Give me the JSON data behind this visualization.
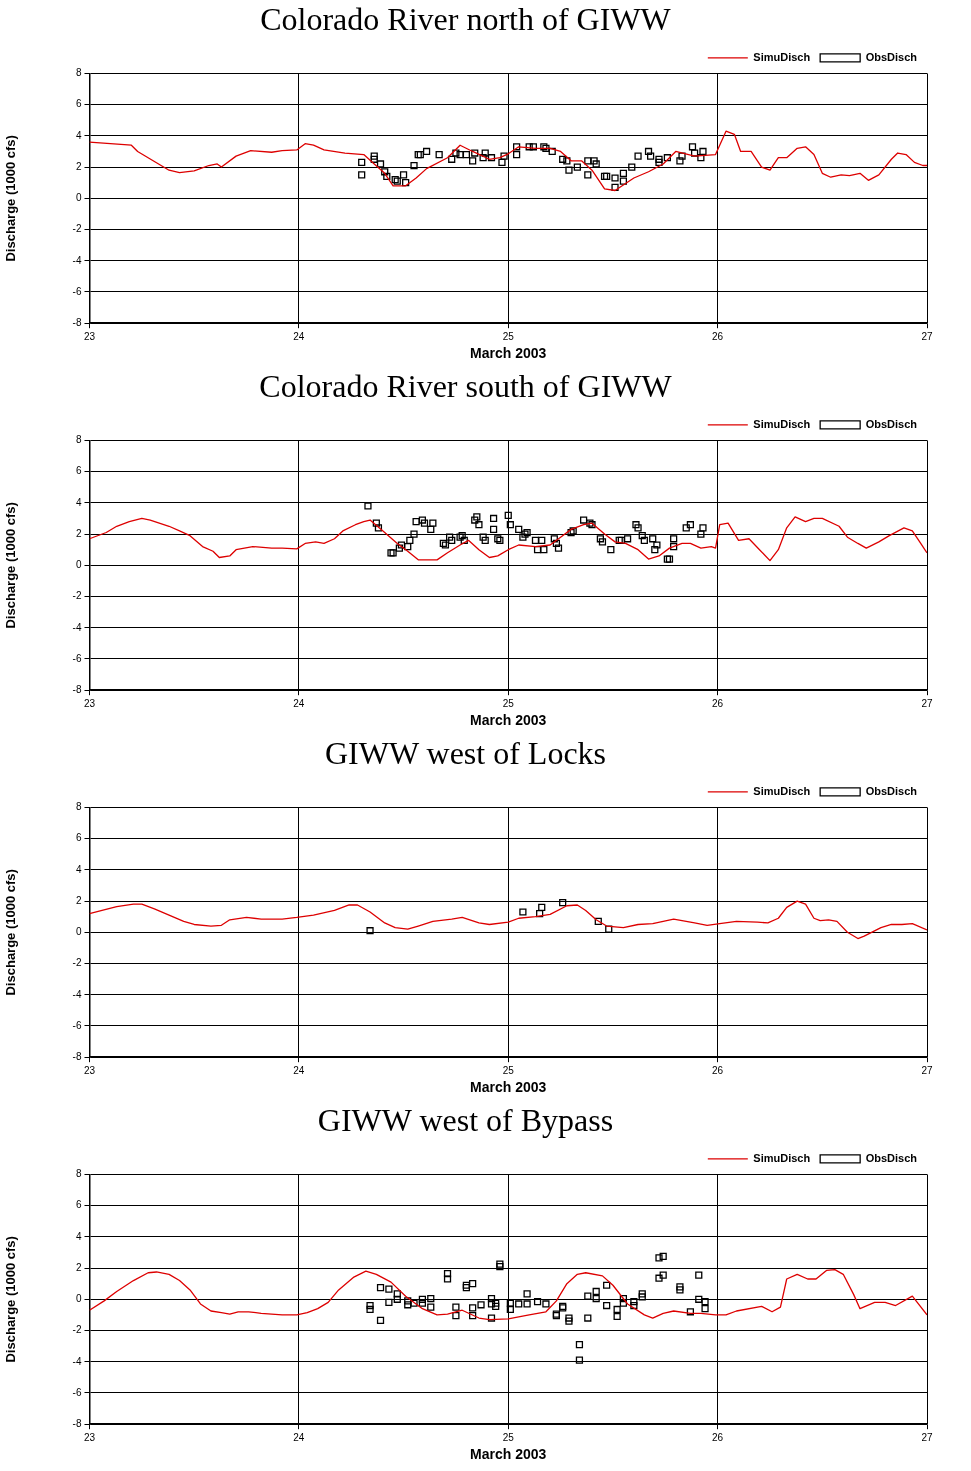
{
  "chart_data": [
    {
      "type": "line",
      "title": "Colorado River north of GIWW",
      "xlabel": "March 2003",
      "ylabel": "Discharge (1000 cfs)",
      "xlim": [
        23,
        27
      ],
      "xticks": [
        23,
        24,
        25,
        26,
        27
      ],
      "ylim": [
        -8,
        8
      ],
      "yticks": [
        -8,
        -6,
        -4,
        -2,
        0,
        2,
        4,
        6,
        8
      ],
      "grid": true,
      "legend": "top right",
      "series": [
        {
          "name": "SimuDisch",
          "type": "line",
          "color": "#dd0000",
          "marker": "none",
          "x": [
            23.0,
            23.2,
            23.23,
            23.33,
            23.38,
            23.43,
            23.5,
            23.57,
            23.61,
            23.63,
            23.7,
            23.77,
            23.87,
            23.92,
            23.99,
            24.03,
            24.07,
            24.12,
            24.22,
            24.31,
            24.36,
            24.41,
            24.45,
            24.51,
            24.56,
            24.61,
            24.71,
            24.77,
            24.83,
            24.91,
            24.96,
            25.0,
            25.05,
            25.13,
            25.2,
            25.25,
            25.3,
            25.35,
            25.4,
            25.46,
            25.51,
            25.6,
            25.67,
            25.74,
            25.8,
            25.89,
            25.99,
            26.04,
            26.08,
            26.11,
            26.16,
            26.21,
            26.25,
            26.29,
            26.33,
            26.38,
            26.42,
            26.46,
            26.5,
            26.54,
            26.59,
            26.63,
            26.68,
            26.72,
            26.77,
            26.83,
            26.86,
            26.9,
            26.94,
            26.98,
            27.0
          ],
          "values": [
            3.6,
            3.4,
            3.0,
            2.2,
            1.8,
            1.65,
            1.75,
            2.1,
            2.2,
            2.0,
            2.7,
            3.05,
            2.95,
            3.05,
            3.1,
            3.5,
            3.4,
            3.1,
            2.9,
            2.8,
            2.2,
            1.6,
            0.8,
            0.8,
            1.3,
            1.9,
            2.6,
            3.4,
            3.0,
            2.5,
            2.6,
            2.85,
            3.3,
            3.2,
            3.2,
            3.0,
            2.4,
            2.4,
            1.8,
            0.6,
            0.5,
            1.3,
            1.7,
            2.2,
            3.0,
            2.7,
            2.8,
            4.3,
            4.1,
            3.0,
            3.0,
            2.0,
            1.8,
            2.6,
            2.6,
            3.2,
            3.3,
            2.8,
            1.6,
            1.35,
            1.5,
            1.45,
            1.6,
            1.15,
            1.5,
            2.5,
            2.9,
            2.8,
            2.3,
            2.1,
            2.1
          ]
        },
        {
          "name": "ObsDisch",
          "type": "scatter",
          "color": "#000000",
          "marker": "square",
          "x": [
            24.3,
            24.3,
            24.36,
            24.36,
            24.39,
            24.41,
            24.42,
            24.46,
            24.47,
            24.5,
            24.51,
            24.55,
            24.57,
            24.58,
            24.61,
            24.67,
            24.73,
            24.75,
            24.77,
            24.8,
            24.83,
            24.84,
            24.88,
            24.89,
            24.92,
            24.97,
            24.98,
            25.04,
            25.04,
            25.1,
            25.12,
            25.17,
            25.18,
            25.21,
            25.26,
            25.28,
            25.29,
            25.33,
            25.38,
            25.38,
            25.41,
            25.42,
            25.46,
            25.47,
            25.51,
            25.51,
            25.55,
            25.55,
            25.59,
            25.62,
            25.67,
            25.68,
            25.72,
            25.72,
            25.76,
            25.82,
            25.83,
            25.88,
            25.89,
            25.92,
            25.93
          ],
          "values": [
            2.3,
            1.5,
            2.5,
            2.7,
            2.2,
            1.7,
            1.4,
            1.2,
            1.1,
            1.5,
            1.0,
            2.1,
            2.8,
            2.8,
            3.0,
            2.8,
            2.5,
            2.9,
            2.8,
            2.8,
            2.4,
            2.9,
            2.6,
            2.9,
            2.6,
            2.3,
            2.7,
            3.3,
            2.8,
            3.3,
            3.3,
            3.3,
            3.2,
            3.0,
            2.5,
            2.4,
            1.8,
            2.0,
            2.4,
            1.5,
            2.4,
            2.2,
            1.4,
            1.4,
            0.7,
            1.3,
            1.6,
            1.1,
            2.0,
            2.7,
            3.0,
            2.7,
            2.5,
            2.3,
            2.6,
            2.4,
            2.7,
            3.3,
            2.9,
            2.6,
            3.0
          ]
        }
      ]
    },
    {
      "type": "line",
      "title": "Colorado River south of GIWW",
      "xlabel": "March 2003",
      "ylabel": "Discharge (1000 cfs)",
      "xlim": [
        23,
        27
      ],
      "xticks": [
        23,
        24,
        25,
        26,
        27
      ],
      "ylim": [
        -8,
        8
      ],
      "yticks": [
        -8,
        -6,
        -4,
        -2,
        0,
        2,
        4,
        6,
        8
      ],
      "grid": true,
      "legend": "top right",
      "series": [
        {
          "name": "SimuDisch",
          "type": "line",
          "color": "#dd0000",
          "marker": "none",
          "x": [
            23.0,
            23.08,
            23.13,
            23.19,
            23.25,
            23.29,
            23.38,
            23.43,
            23.48,
            23.54,
            23.59,
            23.62,
            23.67,
            23.7,
            23.78,
            23.87,
            23.92,
            23.99,
            24.03,
            24.08,
            24.12,
            24.17,
            24.21,
            24.27,
            24.31,
            24.34,
            24.41,
            24.47,
            24.52,
            24.57,
            24.66,
            24.71,
            24.77,
            24.81,
            24.86,
            24.91,
            24.95,
            25.0,
            25.05,
            25.13,
            25.2,
            25.25,
            25.3,
            25.36,
            25.4,
            25.46,
            25.51,
            25.56,
            25.62,
            25.67,
            25.72,
            25.77,
            25.83,
            25.87,
            25.92,
            25.97,
            25.99,
            26.01,
            26.05,
            26.1,
            26.15,
            26.2,
            26.25,
            26.29,
            26.33,
            26.37,
            26.42,
            26.46,
            26.5,
            26.58,
            26.62,
            26.67,
            26.71,
            26.77,
            26.82,
            26.89,
            26.93,
            26.97,
            27.0
          ],
          "values": [
            1.7,
            2.1,
            2.5,
            2.8,
            3.0,
            2.9,
            2.5,
            2.2,
            1.9,
            1.2,
            0.9,
            0.5,
            0.6,
            1.0,
            1.2,
            1.1,
            1.1,
            1.05,
            1.4,
            1.5,
            1.4,
            1.7,
            2.2,
            2.6,
            2.8,
            2.9,
            2.1,
            1.4,
            0.9,
            0.35,
            0.35,
            0.8,
            1.3,
            1.6,
            1.0,
            0.5,
            0.6,
            1.0,
            1.3,
            1.2,
            1.3,
            1.8,
            2.3,
            2.6,
            2.7,
            2.0,
            1.5,
            1.4,
            1.0,
            0.4,
            0.6,
            1.1,
            1.4,
            1.4,
            1.1,
            1.2,
            1.1,
            2.6,
            2.7,
            1.6,
            1.7,
            1.0,
            0.3,
            1.0,
            2.4,
            3.1,
            2.8,
            3.0,
            3.0,
            2.5,
            1.8,
            1.4,
            1.1,
            1.5,
            1.9,
            2.4,
            2.2,
            1.4,
            0.8
          ]
        },
        {
          "name": "ObsDisch",
          "type": "scatter",
          "color": "#000000",
          "marker": "square",
          "x": [
            24.33,
            24.37,
            24.38,
            24.44,
            24.45,
            24.48,
            24.49,
            24.52,
            24.53,
            24.55,
            24.56,
            24.59,
            24.6,
            24.63,
            24.64,
            24.69,
            24.7,
            24.72,
            24.73,
            24.77,
            24.78,
            24.79,
            24.84,
            24.85,
            24.86,
            24.88,
            24.89,
            24.93,
            24.93,
            24.95,
            24.96,
            25.0,
            25.01,
            25.05,
            25.07,
            25.08,
            25.09,
            25.13,
            25.14,
            25.16,
            25.17,
            25.22,
            25.23,
            25.24,
            25.3,
            25.31,
            25.36,
            25.39,
            25.4,
            25.44,
            25.45,
            25.49,
            25.53,
            25.54,
            25.57,
            25.61,
            25.62,
            25.64,
            25.65,
            25.69,
            25.7,
            25.71,
            25.76,
            25.77,
            25.79,
            25.79,
            25.85,
            25.87,
            25.92,
            25.93
          ],
          "values": [
            3.8,
            2.7,
            2.4,
            0.8,
            0.8,
            1.1,
            1.3,
            1.2,
            1.6,
            2.0,
            2.8,
            2.9,
            2.7,
            2.3,
            2.7,
            1.4,
            1.3,
            1.8,
            1.6,
            1.8,
            1.9,
            1.6,
            2.9,
            3.1,
            2.6,
            1.8,
            1.6,
            2.3,
            3.0,
            1.7,
            1.6,
            3.2,
            2.6,
            2.3,
            1.8,
            2.0,
            2.1,
            1.6,
            1.0,
            1.6,
            1.0,
            1.7,
            1.4,
            1.1,
            2.1,
            2.2,
            2.9,
            2.7,
            2.6,
            1.7,
            1.5,
            1.0,
            1.6,
            1.6,
            1.7,
            2.6,
            2.4,
            1.9,
            1.6,
            1.7,
            1.0,
            1.3,
            0.4,
            0.4,
            1.7,
            1.2,
            2.4,
            2.6,
            2.0,
            2.4
          ]
        }
      ]
    },
    {
      "type": "line",
      "title": "GIWW west of Locks",
      "xlabel": "March 2003",
      "ylabel": "Discharge (1000 cfs)",
      "xlim": [
        23,
        27
      ],
      "xticks": [
        23,
        24,
        25,
        26,
        27
      ],
      "ylim": [
        -8,
        8
      ],
      "yticks": [
        -8,
        -6,
        -4,
        -2,
        0,
        2,
        4,
        6,
        8
      ],
      "grid": true,
      "legend": "top right",
      "series": [
        {
          "name": "SimuDisch",
          "type": "line",
          "color": "#dd0000",
          "marker": "none",
          "x": [
            23.0,
            23.06,
            23.13,
            23.21,
            23.25,
            23.31,
            23.38,
            23.45,
            23.5,
            23.58,
            23.63,
            23.67,
            23.75,
            23.82,
            23.92,
            23.99,
            24.07,
            24.17,
            24.24,
            24.28,
            24.34,
            24.41,
            24.46,
            24.52,
            24.57,
            24.64,
            24.73,
            24.78,
            24.86,
            24.91,
            25.0,
            25.05,
            25.13,
            25.2,
            25.28,
            25.33,
            25.37,
            25.42,
            25.47,
            25.55,
            25.62,
            25.69,
            25.79,
            25.89,
            25.95,
            26.01,
            26.09,
            26.19,
            26.24,
            26.29,
            26.33,
            26.38,
            26.42,
            26.46,
            26.49,
            26.53,
            26.57,
            26.62,
            26.67,
            26.7,
            26.78,
            26.83,
            26.88,
            26.93,
            27.0
          ],
          "values": [
            1.2,
            1.4,
            1.65,
            1.8,
            1.8,
            1.5,
            1.1,
            0.7,
            0.5,
            0.4,
            0.45,
            0.8,
            0.95,
            0.85,
            0.85,
            0.95,
            1.1,
            1.4,
            1.75,
            1.75,
            1.3,
            0.6,
            0.3,
            0.2,
            0.4,
            0.7,
            0.85,
            0.95,
            0.6,
            0.5,
            0.65,
            0.9,
            1.0,
            1.15,
            1.7,
            1.75,
            1.4,
            0.8,
            0.4,
            0.3,
            0.5,
            0.55,
            0.85,
            0.6,
            0.45,
            0.55,
            0.7,
            0.65,
            0.6,
            0.9,
            1.6,
            2.0,
            1.8,
            0.9,
            0.75,
            0.8,
            0.7,
            0,
            -0.4,
            -0.25,
            0.3,
            0.5,
            0.5,
            0.55,
            0.15
          ]
        },
        {
          "name": "ObsDisch",
          "type": "scatter",
          "color": "#000000",
          "marker": "square",
          "x": [
            24.34,
            25.07,
            25.15,
            25.16,
            25.26,
            25.43,
            25.48
          ],
          "values": [
            0.1,
            1.3,
            1.2,
            1.6,
            1.9,
            0.7,
            0.2
          ]
        }
      ]
    },
    {
      "type": "line",
      "title": "GIWW west of Bypass",
      "xlabel": "March 2003",
      "ylabel": "Discharge (1000 cfs)",
      "xlim": [
        23,
        27
      ],
      "xticks": [
        23,
        24,
        25,
        26,
        27
      ],
      "ylim": [
        -8,
        8
      ],
      "yticks": [
        -8,
        -6,
        -4,
        -2,
        0,
        2,
        4,
        6,
        8
      ],
      "grid": true,
      "legend": "top right",
      "series": [
        {
          "name": "SimuDisch",
          "type": "line",
          "color": "#dd0000",
          "marker": "none",
          "x": [
            23.0,
            23.07,
            23.13,
            23.21,
            23.28,
            23.32,
            23.38,
            23.43,
            23.48,
            23.53,
            23.58,
            23.63,
            23.67,
            23.71,
            23.76,
            23.82,
            23.92,
            23.99,
            24.04,
            24.09,
            24.14,
            24.19,
            24.26,
            24.32,
            24.37,
            24.44,
            24.51,
            24.59,
            24.66,
            24.71,
            24.78,
            24.86,
            24.91,
            25.0,
            25.1,
            25.18,
            25.23,
            25.28,
            25.33,
            25.37,
            25.45,
            25.5,
            25.57,
            25.65,
            25.69,
            25.74,
            25.79,
            25.87,
            25.92,
            25.99,
            26.04,
            26.09,
            26.21,
            26.26,
            26.3,
            26.33,
            26.38,
            26.43,
            26.47,
            26.52,
            26.56,
            26.6,
            26.65,
            26.68,
            26.75,
            26.8,
            26.85,
            26.93,
            27.0
          ],
          "values": [
            -0.7,
            -0.1,
            0.5,
            1.2,
            1.7,
            1.75,
            1.6,
            1.2,
            0.6,
            -0.3,
            -0.75,
            -0.85,
            -0.95,
            -0.8,
            -0.8,
            -0.9,
            -1.0,
            -1.0,
            -0.85,
            -0.6,
            -0.2,
            0.6,
            1.4,
            1.8,
            1.6,
            1.1,
            0.2,
            -0.6,
            -1.0,
            -0.95,
            -0.7,
            -1.2,
            -1.3,
            -1.25,
            -1.0,
            -0.8,
            -0.1,
            1.0,
            1.6,
            1.7,
            1.5,
            0.9,
            -0.3,
            -1.0,
            -1.2,
            -0.9,
            -0.75,
            -0.9,
            -0.9,
            -1.0,
            -1.0,
            -0.75,
            -0.45,
            -0.8,
            -0.5,
            1.3,
            1.6,
            1.3,
            1.3,
            1.85,
            1.9,
            1.6,
            0.3,
            -0.6,
            -0.2,
            -0.2,
            -0.4,
            0.2,
            -1.0
          ]
        },
        {
          "name": "ObsDisch",
          "type": "scatter",
          "color": "#000000",
          "marker": "square",
          "x": [
            24.34,
            24.34,
            24.39,
            24.39,
            24.43,
            24.43,
            24.47,
            24.47,
            24.52,
            24.52,
            24.55,
            24.59,
            24.59,
            24.63,
            24.63,
            24.71,
            24.71,
            24.75,
            24.75,
            24.8,
            24.8,
            24.83,
            24.83,
            24.83,
            24.87,
            24.92,
            24.92,
            24.92,
            24.94,
            24.94,
            24.96,
            24.96,
            25.01,
            25.01,
            25.05,
            25.09,
            25.09,
            25.14,
            25.18,
            25.23,
            25.23,
            25.26,
            25.26,
            25.29,
            25.29,
            25.34,
            25.34,
            25.38,
            25.38,
            25.42,
            25.42,
            25.47,
            25.47,
            25.52,
            25.52,
            25.55,
            25.55,
            25.6,
            25.6,
            25.64,
            25.64,
            25.72,
            25.74,
            25.72,
            25.74,
            25.82,
            25.82,
            25.87,
            25.91,
            25.91,
            25.94,
            25.94
          ],
          "values": [
            -0.4,
            -0.65,
            -1.35,
            0.75,
            0.65,
            -0.2,
            0.35,
            0,
            -0.1,
            -0.35,
            -0.25,
            0,
            -0.25,
            0.05,
            -0.5,
            1.65,
            1.3,
            -0.5,
            -1.05,
            0.9,
            0.75,
            1.0,
            -0.55,
            -1.05,
            -0.35,
            0.05,
            -0.3,
            -1.2,
            -0.25,
            -0.45,
            2.25,
            2.1,
            -0.25,
            -0.65,
            -0.3,
            0.35,
            -0.3,
            -0.15,
            -0.3,
            -0.95,
            -1.05,
            -0.45,
            -0.55,
            -1.2,
            -1.4,
            -2.9,
            -3.9,
            -1.2,
            0.2,
            0.5,
            0.05,
            0.9,
            -0.4,
            -0.65,
            -1.1,
            0.05,
            -0.25,
            -0.15,
            -0.4,
            0.35,
            0.15,
            2.65,
            2.75,
            1.35,
            1.55,
            0.8,
            0.6,
            -0.8,
            1.55,
            0,
            -0.15,
            -0.6
          ]
        }
      ]
    }
  ]
}
